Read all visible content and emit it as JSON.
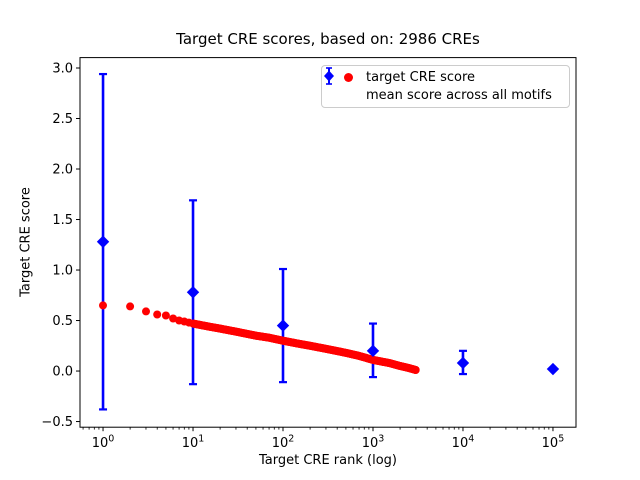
{
  "chart_data": {
    "type": "scatter",
    "title": "Target CRE scores, based on: 2986 CREs",
    "xlabel": "Target CRE rank (log)",
    "ylabel": "Target CRE score",
    "x_scale": "log10",
    "xlim_log10": [
      -0.256,
      5.256
    ],
    "ylim": [
      -0.556,
      3.103
    ],
    "xtick_exponents": [
      0,
      1,
      2,
      3,
      4,
      5
    ],
    "xtick_base": "10",
    "yticks": [
      {
        "value": -0.5,
        "label": "−0.5"
      },
      {
        "value": 0.0,
        "label": "0.0"
      },
      {
        "value": 0.5,
        "label": "0.5"
      },
      {
        "value": 1.0,
        "label": "1.0"
      },
      {
        "value": 1.5,
        "label": "1.5"
      },
      {
        "value": 2.0,
        "label": "2.0"
      },
      {
        "value": 2.5,
        "label": "2.5"
      },
      {
        "value": 3.0,
        "label": "3.0"
      }
    ],
    "grid": false,
    "legend_position": "upper right",
    "series": [
      {
        "name": "target CRE score",
        "type": "scatter",
        "marker": "circle",
        "color": "#ff0000",
        "n_points": 2986,
        "rank_range": [
          1,
          2986
        ],
        "anchors": {
          "rank": [
            1,
            2,
            3,
            4,
            5,
            6,
            7,
            8,
            10,
            15,
            20,
            30,
            50,
            70,
            100,
            150,
            200,
            300,
            500,
            700,
            1000,
            1500,
            2000,
            2500,
            2986
          ],
          "score": [
            0.65,
            0.64,
            0.59,
            0.56,
            0.55,
            0.52,
            0.5,
            0.49,
            0.47,
            0.44,
            0.42,
            0.39,
            0.35,
            0.33,
            0.3,
            0.27,
            0.25,
            0.22,
            0.18,
            0.15,
            0.11,
            0.08,
            0.05,
            0.03,
            0.01
          ]
        }
      },
      {
        "name": "mean score across all motifs",
        "type": "errorbar",
        "marker": "diamond",
        "color": "#0000ff",
        "points": [
          {
            "rank": 1,
            "mean": 1.28,
            "err_lo": -0.38,
            "err_hi": 2.94
          },
          {
            "rank": 10,
            "mean": 0.78,
            "err_lo": -0.13,
            "err_hi": 1.69
          },
          {
            "rank": 100,
            "mean": 0.45,
            "err_lo": -0.11,
            "err_hi": 1.01
          },
          {
            "rank": 1000,
            "mean": 0.2,
            "err_lo": -0.06,
            "err_hi": 0.47
          },
          {
            "rank": 10000,
            "mean": 0.08,
            "err_lo": -0.03,
            "err_hi": 0.2
          },
          {
            "rank": 100000,
            "mean": 0.02,
            "err_lo": 0.02,
            "err_hi": 0.02
          }
        ]
      }
    ]
  }
}
